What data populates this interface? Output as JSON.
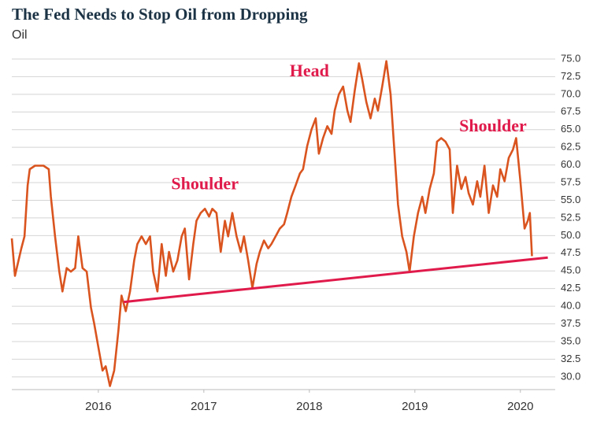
{
  "chart_data": {
    "type": "line",
    "title": "The Fed Needs to Stop Oil from Dropping",
    "subtitle": "Oil",
    "xlim": [
      2015.18,
      2020.33
    ],
    "xticks": [
      2016,
      2017,
      2018,
      2019,
      2020
    ],
    "ylim": [
      28.2,
      75
    ],
    "yticks": [
      {
        "value": 30,
        "label": "30.0"
      },
      32.5,
      {
        "value": 35,
        "label": "35.0"
      },
      37.5,
      {
        "value": 40,
        "label": "40.0"
      },
      42.5,
      {
        "value": 45,
        "label": "45.0"
      },
      47.5,
      {
        "value": 50,
        "label": "50.0"
      },
      52.5,
      {
        "value": 55,
        "label": "55.0"
      },
      57.5,
      {
        "value": 60,
        "label": "60.0"
      },
      62.5,
      {
        "value": 65,
        "label": "65.0"
      },
      67.5,
      {
        "value": 70,
        "label": "70.0"
      },
      72.5,
      {
        "value": 75,
        "label": "75.0"
      }
    ],
    "grid": true,
    "series": [
      {
        "color": "#d9541f",
        "x": [
          2015.18,
          2015.21,
          2015.27,
          2015.3,
          2015.33,
          2015.35,
          2015.4,
          2015.48,
          2015.53,
          2015.55,
          2015.59,
          2015.63,
          2015.66,
          2015.7,
          2015.74,
          2015.78,
          2015.81,
          2015.85,
          2015.89,
          2015.93,
          2015.96,
          2016.0,
          2016.04,
          2016.07,
          2016.11,
          2016.15,
          2016.19,
          2016.22,
          2016.26,
          2016.3,
          2016.34,
          2016.37,
          2016.41,
          2016.45,
          2016.49,
          2016.52,
          2016.56,
          2016.6,
          2016.64,
          2016.67,
          2016.71,
          2016.75,
          2016.79,
          2016.82,
          2016.86,
          2016.9,
          2016.93,
          2016.97,
          2017.01,
          2017.05,
          2017.08,
          2017.12,
          2017.16,
          2017.2,
          2017.23,
          2017.27,
          2017.31,
          2017.35,
          2017.38,
          2017.42,
          2017.46,
          2017.5,
          2017.53,
          2017.57,
          2017.61,
          2017.64,
          2017.68,
          2017.72,
          2017.76,
          2017.79,
          2017.83,
          2017.87,
          2017.91,
          2017.94,
          2017.98,
          2018.02,
          2018.06,
          2018.09,
          2018.13,
          2018.17,
          2018.21,
          2018.24,
          2018.28,
          2018.32,
          2018.36,
          2018.39,
          2018.43,
          2018.47,
          2018.5,
          2018.54,
          2018.58,
          2018.62,
          2018.65,
          2018.69,
          2018.73,
          2018.77,
          2018.8,
          2018.84,
          2018.88,
          2018.92,
          2018.95,
          2018.99,
          2019.03,
          2019.07,
          2019.1,
          2019.14,
          2019.18,
          2019.21,
          2019.25,
          2019.29,
          2019.33,
          2019.36,
          2019.4,
          2019.44,
          2019.48,
          2019.51,
          2019.55,
          2019.59,
          2019.62,
          2019.66,
          2019.7,
          2019.74,
          2019.78,
          2019.81,
          2019.85,
          2019.89,
          2019.93,
          2019.96,
          2020.0,
          2020.04,
          2020.07,
          2020.09,
          2020.11
        ],
        "values": [
          49.6,
          44.3,
          48.2,
          49.9,
          57.1,
          59.4,
          59.9,
          59.9,
          59.4,
          55.5,
          49.9,
          44.9,
          42.1,
          45.4,
          44.9,
          45.4,
          49.9,
          45.4,
          44.9,
          39.8,
          37.6,
          34.2,
          30.9,
          31.5,
          28.7,
          30.9,
          36.5,
          41.5,
          39.3,
          42.1,
          46.5,
          48.8,
          49.9,
          48.8,
          49.9,
          44.9,
          42.1,
          48.8,
          44.3,
          47.7,
          44.9,
          46.5,
          49.9,
          51.0,
          43.8,
          48.8,
          52.1,
          53.2,
          53.8,
          52.7,
          53.8,
          53.2,
          47.7,
          52.1,
          49.9,
          53.2,
          49.9,
          47.7,
          49.9,
          46.5,
          42.6,
          46.0,
          47.7,
          49.3,
          48.2,
          48.8,
          49.9,
          51.0,
          51.6,
          53.2,
          55.5,
          57.1,
          58.8,
          59.4,
          62.7,
          65.0,
          66.6,
          61.6,
          63.8,
          65.5,
          64.4,
          67.7,
          70.0,
          71.1,
          67.7,
          66.1,
          70.5,
          74.4,
          72.2,
          68.9,
          66.6,
          69.4,
          67.7,
          71.1,
          74.7,
          70.0,
          63.3,
          54.4,
          49.9,
          47.7,
          44.9,
          49.9,
          53.2,
          55.5,
          53.2,
          56.6,
          58.8,
          63.3,
          63.8,
          63.3,
          62.2,
          53.2,
          59.9,
          56.6,
          58.3,
          56.0,
          54.4,
          57.7,
          55.5,
          59.9,
          53.2,
          57.1,
          55.5,
          59.4,
          57.7,
          61.0,
          62.2,
          63.8,
          57.7,
          51.0,
          52.1,
          53.2,
          47.1
        ]
      }
    ],
    "trendline": {
      "color": "#e01b4c",
      "x": [
        2016.24,
        2020.26
      ],
      "values": [
        40.6,
        46.9
      ]
    },
    "annotations": [
      {
        "text": "Head",
        "x": 2018.0,
        "y": 73.1,
        "color": "#e01b4c"
      },
      {
        "text": "Shoulder",
        "x": 2017.01,
        "y": 57.1,
        "color": "#e01b4c"
      },
      {
        "text": "Shoulder",
        "x": 2019.74,
        "y": 65.3,
        "color": "#e01b4c"
      }
    ]
  }
}
